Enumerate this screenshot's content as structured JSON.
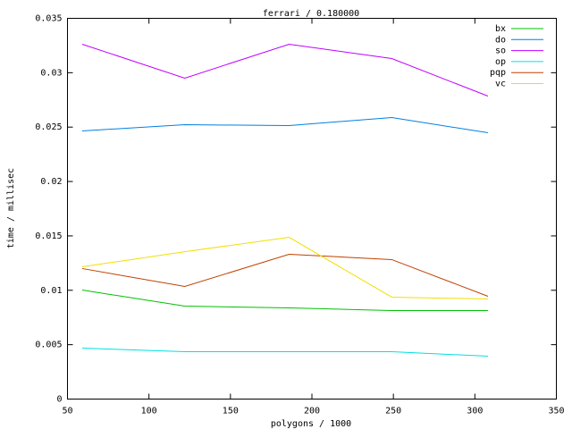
{
  "chart_data": {
    "type": "line",
    "title": "ferrari / 0.180000",
    "x_label": "polygons / 1000",
    "y_label": "time / millisec",
    "x": [
      59,
      122,
      186,
      249,
      308
    ],
    "series": [
      {
        "name": "bx",
        "color": "#00c000",
        "values": [
          0.01002,
          0.00854,
          0.00838,
          0.00813,
          0.00813
        ]
      },
      {
        "name": "do",
        "color": "#0080e0",
        "values": [
          0.02465,
          0.02522,
          0.02514,
          0.02588,
          0.02448
        ]
      },
      {
        "name": "so",
        "color": "#c000ff",
        "values": [
          0.03262,
          0.0295,
          0.03262,
          0.0313,
          0.02785
        ]
      },
      {
        "name": "op",
        "color": "#00e0e0",
        "values": [
          0.00468,
          0.00435,
          0.00435,
          0.00435,
          0.00394
        ]
      },
      {
        "name": "pqp",
        "color": "#c04000",
        "values": [
          0.012,
          0.01035,
          0.01331,
          0.01282,
          0.00945
        ]
      },
      {
        "name": "vc",
        "color": "#f0e000",
        "values": [
          0.01216,
          0.01355,
          0.01487,
          0.00937,
          0.0092
        ]
      }
    ],
    "xlim": [
      50,
      350
    ],
    "xticks": [
      50,
      100,
      150,
      200,
      250,
      300,
      350
    ],
    "ylim": [
      0,
      0.035
    ],
    "yticks": [
      0,
      0.005,
      0.01,
      0.015,
      0.02,
      0.025,
      0.03,
      0.035
    ]
  }
}
